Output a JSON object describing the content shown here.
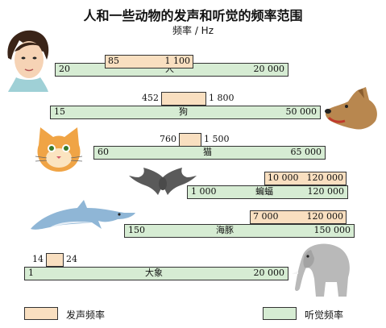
{
  "chart_data": {
    "type": "bar",
    "title": "人和一些动物的发声和听觉的频率范围",
    "unit_label": "频率 / Hz",
    "series": [
      {
        "name": "发声频率",
        "color": "#f9dfc0"
      },
      {
        "name": "听觉频率",
        "color": "#d6ecd3"
      }
    ],
    "legend_position": "bottom",
    "animals": [
      {
        "name": "人",
        "hearing": [
          "20",
          "20 000"
        ],
        "vocal": [
          "85",
          "1 100"
        ]
      },
      {
        "name": "狗",
        "hearing": [
          "15",
          "50 000"
        ],
        "vocal": [
          "452",
          "1 800"
        ]
      },
      {
        "name": "猫",
        "hearing": [
          "60",
          "65 000"
        ],
        "vocal": [
          "760",
          "1 500"
        ]
      },
      {
        "name": "蝙蝠",
        "hearing": [
          "1 000",
          "120 000"
        ],
        "vocal": [
          "10 000",
          "120 000"
        ]
      },
      {
        "name": "海豚",
        "hearing": [
          "150",
          "150 000"
        ],
        "vocal": [
          "7 000",
          "120 000"
        ]
      },
      {
        "name": "大象",
        "hearing": [
          "1",
          "20 000"
        ],
        "vocal": [
          "14",
          "24"
        ]
      }
    ]
  }
}
